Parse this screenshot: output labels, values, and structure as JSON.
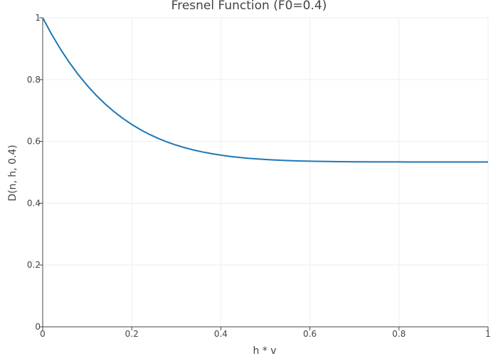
{
  "chart_data": {
    "type": "line",
    "title": "Fresnel Function (F0=0.4)",
    "xlabel": "h * v",
    "ylabel": "D(n, h, 0.4)",
    "xlim": [
      0,
      1
    ],
    "ylim": [
      0,
      1
    ],
    "x_ticks": [
      "0",
      "0.2",
      "0.4",
      "0.6",
      "0.8",
      "1"
    ],
    "y_ticks": [
      "0",
      "0.2",
      "0.4",
      "0.6",
      "0.8",
      "1"
    ],
    "x_tick_values": [
      0,
      0.2,
      0.4,
      0.6,
      0.8,
      1
    ],
    "y_tick_values": [
      0,
      0.2,
      0.4,
      0.6,
      0.8,
      1
    ],
    "grid": true,
    "legend": "none",
    "series": [
      {
        "color": "#1f77b4",
        "x": [
          0,
          0.02,
          0.04,
          0.06,
          0.08,
          0.1,
          0.12,
          0.14,
          0.16,
          0.18,
          0.2,
          0.22,
          0.24,
          0.26,
          0.28,
          0.3,
          0.32,
          0.34,
          0.36,
          0.38,
          0.4,
          0.42,
          0.44,
          0.46,
          0.48,
          0.5,
          0.52,
          0.54,
          0.56,
          0.58,
          0.6,
          0.62,
          0.64,
          0.66,
          0.68,
          0.7,
          0.72,
          0.74,
          0.76,
          0.78,
          0.8,
          0.82,
          0.84,
          0.86,
          0.88,
          0.9,
          0.92,
          0.94,
          0.96,
          0.98,
          1
        ],
        "y": [
          1,
          0.9467,
          0.8986,
          0.8551,
          0.816,
          0.7809,
          0.7495,
          0.7215,
          0.6965,
          0.6744,
          0.6549,
          0.6376,
          0.6225,
          0.6093,
          0.5978,
          0.5878,
          0.5792,
          0.5718,
          0.5655,
          0.5601,
          0.5555,
          0.5516,
          0.5484,
          0.5456,
          0.5434,
          0.5414,
          0.5399,
          0.5386,
          0.5375,
          0.5367,
          0.536,
          0.5354,
          0.535,
          0.5346,
          0.5343,
          0.5341,
          0.534,
          0.5338,
          0.5337,
          0.5336,
          0.5336,
          0.5335,
          0.5335,
          0.5335,
          0.5335,
          0.5334,
          0.5334,
          0.5334,
          0.5334,
          0.5334,
          0.5334
        ]
      }
    ]
  }
}
